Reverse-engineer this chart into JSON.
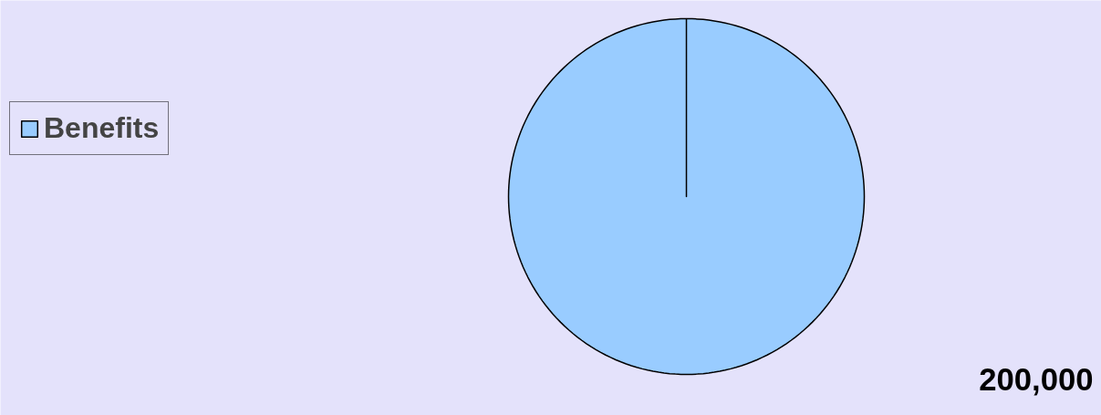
{
  "chart_data": {
    "type": "pie",
    "categories": [
      "Benefits"
    ],
    "values": [
      200000
    ],
    "colors": [
      "#99ccff"
    ],
    "value_labels": [
      "200,000"
    ],
    "legend": "left"
  }
}
